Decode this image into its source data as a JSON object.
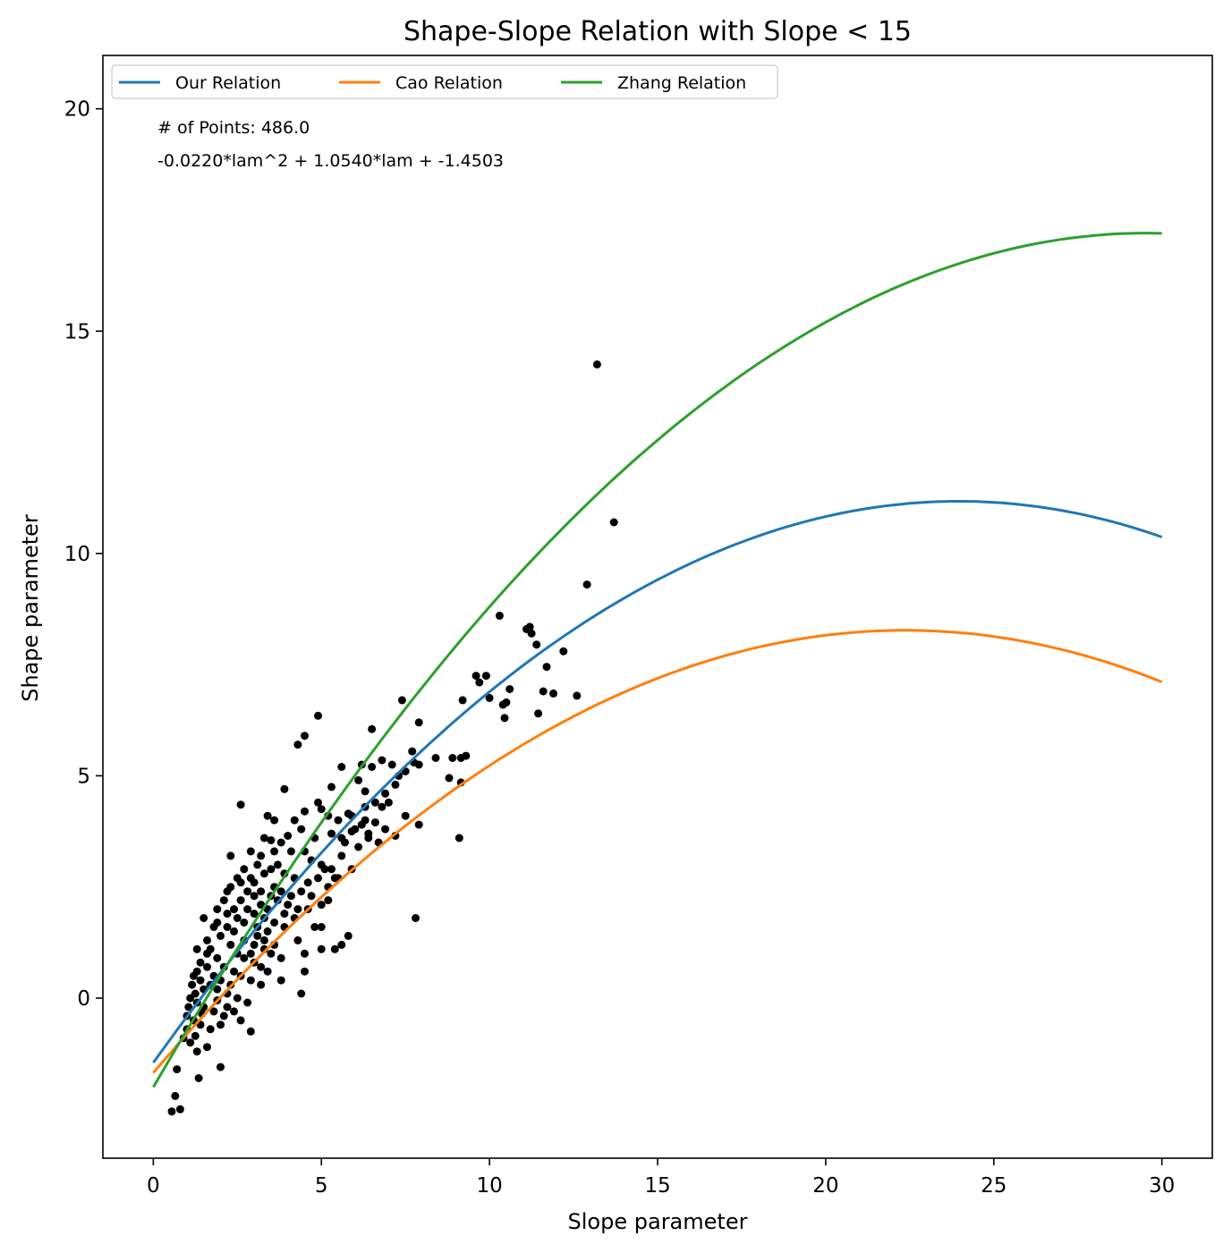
{
  "chart_data": {
    "type": "scatter",
    "title": "Shape-Slope Relation with Slope < 15",
    "xlabel": "Slope parameter",
    "ylabel": "Shape parameter",
    "xlim": [
      -1.5,
      31.5
    ],
    "ylim": [
      -3.6,
      21.2
    ],
    "xticks": [
      0,
      5,
      10,
      15,
      20,
      25,
      30
    ],
    "yticks": [
      0,
      5,
      10,
      15,
      20
    ],
    "grid": false,
    "legend": {
      "placement": "top-left",
      "columns": 3
    },
    "annotations": [
      "# of Points: 486.0",
      "-0.0220*lam^2 + 1.0540*lam + -1.4503"
    ],
    "series": [
      {
        "name": "Our Relation",
        "type": "line",
        "color": "#1f77b4",
        "coefficients": [
          -0.022,
          1.054,
          -1.4503
        ],
        "x_range": [
          0,
          30
        ]
      },
      {
        "name": "Cao Relation",
        "type": "line",
        "color": "#ff7f0e",
        "coefficients": [
          -0.0199,
          0.89,
          -1.68
        ],
        "x_range": [
          0,
          30
        ]
      },
      {
        "name": "Zhang Relation",
        "type": "line",
        "color": "#2ca02c",
        "coefficients": [
          -0.022,
          1.3,
          -2.0
        ],
        "x_range": [
          0,
          30
        ]
      }
    ],
    "scatter": {
      "color": "#000000",
      "count": 486,
      "points": [
        [
          13.2,
          14.25
        ],
        [
          13.7,
          10.7
        ],
        [
          12.9,
          9.3
        ],
        [
          10.3,
          8.6
        ],
        [
          11.1,
          8.3
        ],
        [
          11.2,
          8.35
        ],
        [
          11.25,
          8.2
        ],
        [
          12.2,
          7.8
        ],
        [
          11.4,
          7.95
        ],
        [
          11.7,
          7.45
        ],
        [
          9.6,
          7.25
        ],
        [
          9.7,
          7.1
        ],
        [
          9.9,
          7.25
        ],
        [
          10.6,
          6.95
        ],
        [
          11.6,
          6.9
        ],
        [
          11.9,
          6.85
        ],
        [
          12.6,
          6.8
        ],
        [
          10.0,
          6.75
        ],
        [
          9.2,
          6.7
        ],
        [
          10.4,
          6.6
        ],
        [
          10.5,
          6.65
        ],
        [
          10.45,
          6.3
        ],
        [
          11.45,
          6.4
        ],
        [
          7.4,
          6.7
        ],
        [
          7.9,
          6.2
        ],
        [
          6.5,
          6.05
        ],
        [
          4.9,
          6.35
        ],
        [
          4.5,
          5.9
        ],
        [
          4.3,
          5.7
        ],
        [
          7.7,
          5.55
        ],
        [
          8.4,
          5.4
        ],
        [
          8.9,
          5.4
        ],
        [
          9.3,
          5.45
        ],
        [
          9.15,
          5.4
        ],
        [
          7.1,
          5.25
        ],
        [
          7.75,
          5.3
        ],
        [
          7.9,
          5.25
        ],
        [
          6.8,
          5.35
        ],
        [
          6.2,
          5.25
        ],
        [
          5.6,
          5.2
        ],
        [
          6.5,
          5.2
        ],
        [
          7.3,
          5.0
        ],
        [
          7.5,
          5.1
        ],
        [
          6.1,
          4.9
        ],
        [
          8.8,
          4.95
        ],
        [
          9.15,
          4.85
        ],
        [
          5.3,
          4.75
        ],
        [
          6.3,
          4.65
        ],
        [
          3.9,
          4.7
        ],
        [
          2.6,
          4.35
        ],
        [
          4.9,
          4.4
        ],
        [
          5.0,
          4.25
        ],
        [
          4.5,
          4.2
        ],
        [
          3.4,
          4.1
        ],
        [
          3.6,
          4.0
        ],
        [
          4.2,
          4.0
        ],
        [
          5.2,
          4.1
        ],
        [
          5.5,
          4.0
        ],
        [
          5.8,
          4.15
        ],
        [
          6.3,
          4.0
        ],
        [
          6.6,
          3.95
        ],
        [
          7.2,
          3.65
        ],
        [
          7.5,
          4.1
        ],
        [
          7.9,
          3.9
        ],
        [
          9.1,
          3.6
        ],
        [
          6.9,
          3.8
        ],
        [
          6.7,
          3.5
        ],
        [
          6.1,
          3.4
        ],
        [
          6.4,
          3.6
        ],
        [
          5.9,
          3.75
        ],
        [
          5.3,
          3.7
        ],
        [
          4.8,
          3.6
        ],
        [
          4.4,
          3.8
        ],
        [
          4.0,
          3.65
        ],
        [
          3.8,
          3.5
        ],
        [
          3.5,
          3.55
        ],
        [
          3.3,
          3.6
        ],
        [
          4.1,
          3.3
        ],
        [
          4.5,
          3.3
        ],
        [
          4.7,
          3.1
        ],
        [
          5.0,
          3.0
        ],
        [
          5.3,
          2.9
        ],
        [
          5.5,
          2.7
        ],
        [
          5.9,
          2.9
        ],
        [
          2.3,
          3.2
        ],
        [
          2.9,
          3.3
        ],
        [
          3.1,
          3.0
        ],
        [
          3.7,
          3.0
        ],
        [
          3.9,
          2.8
        ],
        [
          4.2,
          2.7
        ],
        [
          4.6,
          2.6
        ],
        [
          5.2,
          2.5
        ],
        [
          5.4,
          2.7
        ],
        [
          2.6,
          2.6
        ],
        [
          2.9,
          2.7
        ],
        [
          3.2,
          2.4
        ],
        [
          3.5,
          2.3
        ],
        [
          3.7,
          2.2
        ],
        [
          4.0,
          2.1
        ],
        [
          4.3,
          2.0
        ],
        [
          4.6,
          2.0
        ],
        [
          5.0,
          2.1
        ],
        [
          5.2,
          2.2
        ],
        [
          2.2,
          2.4
        ],
        [
          2.6,
          2.2
        ],
        [
          2.8,
          2.0
        ],
        [
          3.0,
          1.9
        ],
        [
          3.3,
          1.8
        ],
        [
          3.6,
          1.7
        ],
        [
          3.9,
          1.6
        ],
        [
          4.8,
          1.6
        ],
        [
          5.0,
          1.6
        ],
        [
          1.5,
          1.8
        ],
        [
          1.9,
          1.7
        ],
        [
          2.2,
          1.6
        ],
        [
          2.4,
          1.5
        ],
        [
          2.7,
          1.3
        ],
        [
          3.0,
          1.2
        ],
        [
          3.3,
          1.1
        ],
        [
          3.5,
          1.0
        ],
        [
          3.8,
          0.9
        ],
        [
          4.3,
          1.3
        ],
        [
          4.5,
          1.0
        ],
        [
          4.5,
          0.6
        ],
        [
          4.4,
          0.1
        ],
        [
          5.0,
          1.1
        ],
        [
          5.4,
          1.1
        ],
        [
          5.6,
          1.2
        ],
        [
          5.8,
          1.4
        ],
        [
          7.8,
          1.8
        ],
        [
          1.3,
          1.1
        ],
        [
          1.6,
          1.0
        ],
        [
          1.9,
          0.9
        ],
        [
          2.1,
          0.7
        ],
        [
          2.4,
          0.6
        ],
        [
          2.6,
          0.5
        ],
        [
          2.9,
          0.4
        ],
        [
          3.2,
          0.3
        ],
        [
          3.8,
          0.4
        ],
        [
          1.2,
          0.5
        ],
        [
          1.4,
          0.4
        ],
        [
          1.7,
          0.3
        ],
        [
          1.9,
          0.2
        ],
        [
          2.2,
          0.1
        ],
        [
          2.5,
          0.0
        ],
        [
          2.8,
          -0.1
        ],
        [
          1.1,
          0.0
        ],
        [
          1.3,
          -0.1
        ],
        [
          1.5,
          -0.2
        ],
        [
          1.8,
          -0.3
        ],
        [
          2.1,
          -0.4
        ],
        [
          2.6,
          -0.5
        ],
        [
          1.0,
          -0.4
        ],
        [
          1.2,
          -0.5
        ],
        [
          1.4,
          -0.6
        ],
        [
          1.7,
          -0.7
        ],
        [
          2.0,
          -0.6
        ],
        [
          2.9,
          -0.75
        ],
        [
          1.1,
          -1.0
        ],
        [
          1.3,
          -1.2
        ],
        [
          1.6,
          -1.1
        ],
        [
          0.7,
          -1.6
        ],
        [
          0.65,
          -2.2
        ],
        [
          0.8,
          -2.5
        ],
        [
          0.55,
          -2.55
        ],
        [
          2.0,
          -1.55
        ],
        [
          1.35,
          -1.8
        ],
        [
          1.0,
          -0.7
        ],
        [
          0.9,
          -0.9
        ],
        [
          1.25,
          -0.85
        ],
        [
          2.5,
          1.8
        ],
        [
          2.7,
          1.7
        ],
        [
          3.1,
          1.6
        ],
        [
          3.4,
          1.5
        ],
        [
          3.0,
          2.3
        ],
        [
          3.2,
          2.1
        ],
        [
          3.4,
          2.0
        ],
        [
          2.8,
          2.4
        ],
        [
          3.6,
          2.5
        ],
        [
          3.8,
          2.4
        ],
        [
          4.1,
          2.3
        ],
        [
          4.4,
          2.4
        ],
        [
          3.3,
          2.8
        ],
        [
          3.5,
          2.9
        ],
        [
          3.0,
          2.6
        ],
        [
          2.4,
          2.0
        ],
        [
          2.2,
          1.9
        ],
        [
          2.0,
          1.4
        ],
        [
          2.3,
          1.2
        ],
        [
          2.5,
          1.0
        ],
        [
          2.7,
          0.9
        ],
        [
          3.0,
          0.8
        ],
        [
          3.2,
          0.7
        ],
        [
          3.4,
          0.6
        ],
        [
          1.8,
          0.5
        ],
        [
          2.0,
          0.4
        ],
        [
          2.3,
          0.3
        ],
        [
          1.6,
          0.7
        ],
        [
          1.5,
          0.2
        ],
        [
          1.9,
          -0.05
        ],
        [
          2.2,
          -0.2
        ],
        [
          2.4,
          -0.3
        ],
        [
          3.1,
          1.4
        ],
        [
          2.9,
          1.0
        ],
        [
          3.3,
          1.3
        ],
        [
          3.6,
          1.2
        ],
        [
          3.9,
          1.9
        ],
        [
          4.2,
          1.8
        ],
        [
          4.7,
          2.3
        ],
        [
          4.9,
          2.7
        ],
        [
          5.1,
          2.9
        ],
        [
          5.6,
          3.2
        ],
        [
          5.7,
          3.5
        ],
        [
          6.0,
          3.8
        ],
        [
          6.2,
          3.9
        ],
        [
          6.4,
          3.7
        ],
        [
          6.8,
          4.3
        ],
        [
          7.0,
          4.4
        ],
        [
          7.2,
          4.8
        ],
        [
          6.9,
          4.6
        ],
        [
          6.6,
          4.4
        ],
        [
          6.3,
          4.3
        ],
        [
          5.9,
          4.1
        ],
        [
          5.6,
          3.6
        ],
        [
          3.6,
          3.3
        ],
        [
          3.2,
          3.2
        ],
        [
          2.7,
          2.9
        ],
        [
          2.5,
          2.7
        ],
        [
          2.3,
          2.5
        ],
        [
          2.1,
          2.2
        ],
        [
          1.9,
          2.0
        ],
        [
          1.8,
          1.6
        ],
        [
          1.6,
          1.3
        ],
        [
          1.7,
          1.1
        ],
        [
          1.4,
          0.8
        ],
        [
          1.3,
          0.6
        ],
        [
          1.15,
          0.3
        ],
        [
          1.25,
          0.1
        ],
        [
          1.05,
          -0.2
        ],
        [
          1.45,
          -0.35
        ]
      ]
    }
  }
}
